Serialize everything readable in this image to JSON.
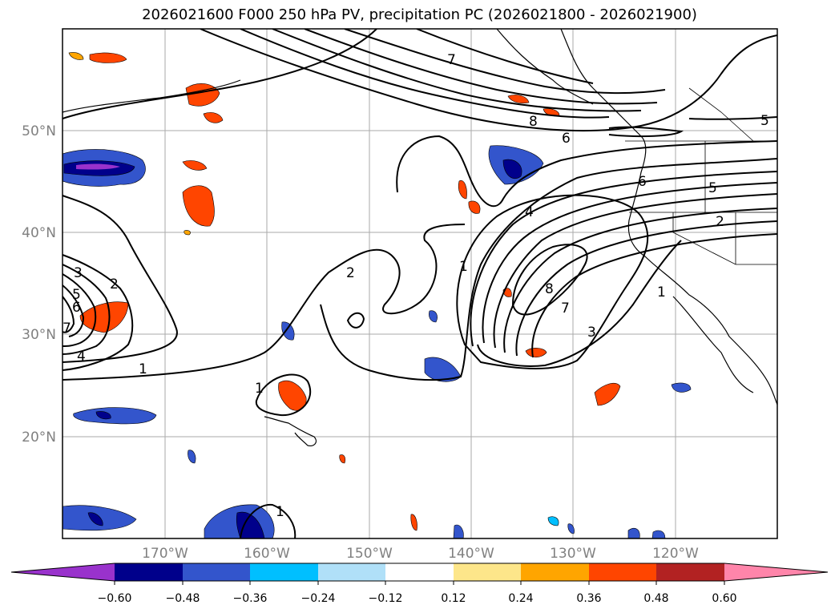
{
  "title": "2026021600 F000 250 hPa PV, precipitation PC (2026021800 - 2026021900)",
  "map": {
    "lon_range": [
      -180,
      -110
    ],
    "lat_range": [
      10,
      60
    ],
    "lon_ticks": [
      {
        "lon": -170,
        "label": "170°W"
      },
      {
        "lon": -160,
        "label": "160°W"
      },
      {
        "lon": -150,
        "label": "150°W"
      },
      {
        "lon": -140,
        "label": "140°W"
      },
      {
        "lon": -130,
        "label": "130°W"
      },
      {
        "lon": -120,
        "label": "120°W"
      }
    ],
    "lat_ticks": [
      {
        "lat": 50,
        "label": "50°N"
      },
      {
        "lat": 40,
        "label": "40°N"
      },
      {
        "lat": 30,
        "label": "30°N"
      },
      {
        "lat": 20,
        "label": "20°N"
      }
    ],
    "contour_labels": [
      "7",
      "6",
      "8",
      "5",
      "6",
      "5",
      "4",
      "2",
      "1",
      "2",
      "8",
      "7",
      "3",
      "1",
      "3",
      "2",
      "5",
      "6",
      "7",
      "4",
      "1",
      "1",
      "1"
    ]
  },
  "colorbar": {
    "colors": [
      "#9932cc",
      "#00008b",
      "#3355cc",
      "#00bfff",
      "#b0e0f8",
      "#ffffff",
      "#fde68a",
      "#ffa500",
      "#ff4500",
      "#b22222",
      "#ff85aa"
    ],
    "ticks": [
      "−0.60",
      "−0.48",
      "−0.36",
      "−0.24",
      "−0.12",
      "0.12",
      "0.24",
      "0.36",
      "0.48",
      "0.60"
    ]
  }
}
